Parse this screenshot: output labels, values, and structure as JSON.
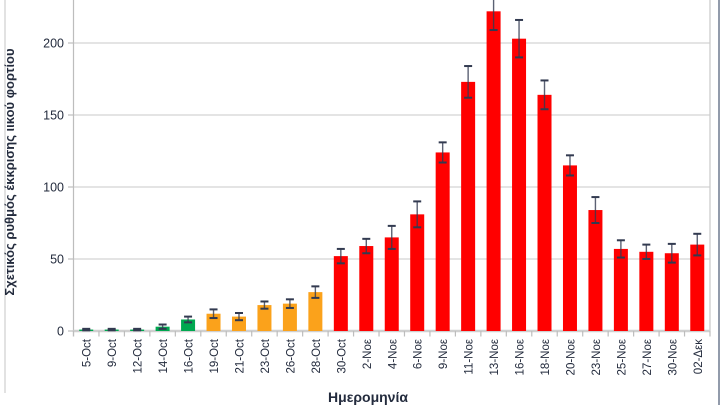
{
  "chart_data": {
    "type": "bar",
    "title": "",
    "ylabel": "Σχετικός ρυθμός έκκρισης ιικού φορτίου",
    "xlabel": "Ημερομηνία",
    "categories": [
      "5-Oct",
      "9-Oct",
      "12-Oct",
      "14-Oct",
      "16-Oct",
      "19-Oct",
      "21-Oct",
      "23-Oct",
      "26-Oct",
      "28-Oct",
      "30-Oct",
      "2-Νοε",
      "4-Νοε",
      "6-Νοε",
      "9-Νοε",
      "11-Νοε",
      "13-Νοε",
      "16-Νοε",
      "18-Νοε",
      "20-Νοε",
      "23-Νοε",
      "25-Νοε",
      "27-Νοε",
      "30-Νοε",
      "02-Δεκ"
    ],
    "values": [
      1,
      1,
      1,
      3,
      8,
      12,
      10,
      18,
      19,
      27,
      52,
      59,
      65,
      81,
      124,
      173,
      222,
      203,
      164,
      115,
      84,
      57,
      55,
      54,
      60
    ],
    "errors": [
      0.5,
      0.5,
      0.5,
      1.5,
      2,
      3,
      2.5,
      2.5,
      3,
      4,
      5,
      5,
      8,
      9,
      7,
      11,
      13,
      13,
      10,
      7,
      9,
      6,
      5,
      6.5,
      7.5
    ],
    "bar_colors": [
      "#00A850",
      "#00A850",
      "#00A850",
      "#00A850",
      "#00A850",
      "#FBA21B",
      "#FBA21B",
      "#FBA21B",
      "#FBA21B",
      "#FBA21B",
      "#FF0000",
      "#FF0000",
      "#FF0000",
      "#FF0000",
      "#FF0000",
      "#FF0000",
      "#FF0000",
      "#FF0000",
      "#FF0000",
      "#FF0000",
      "#FF0000",
      "#FF0000",
      "#FF0000",
      "#FF0000",
      "#FF0000"
    ],
    "yticks": [
      0,
      50,
      100,
      150,
      200
    ],
    "ylim": [
      0,
      230
    ],
    "grid": true,
    "legend": false
  },
  "palette": {
    "green": "#00A850",
    "orange": "#FBA21B",
    "red": "#FF0000",
    "text": "#232B3D",
    "grid": "#C9C9C9",
    "axis": "#BDBDBD",
    "baseline": "#CFCFCF",
    "error_bar": "#323A50",
    "chart_border": "#D9D9D9",
    "window_edge": "#929BAB"
  }
}
